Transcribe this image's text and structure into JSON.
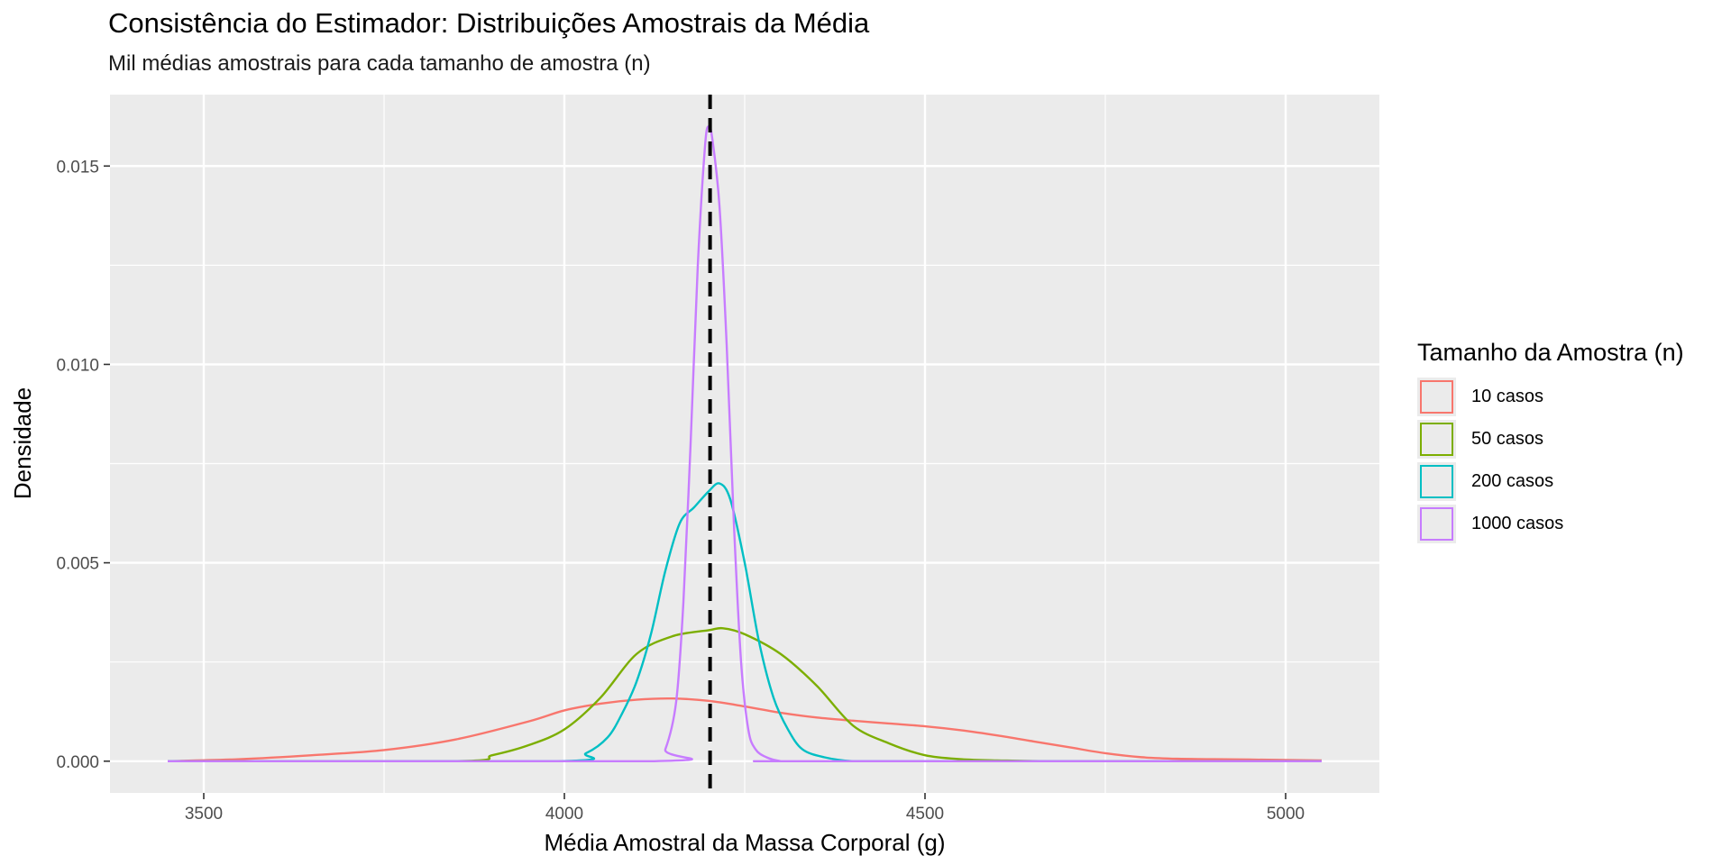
{
  "chart_data": {
    "type": "area",
    "title": "Consistência do Estimador: Distribuições Amostrais da Média",
    "subtitle": "Mil médias amostrais para cada tamanho de amostra (n)",
    "xlabel": "Média Amostral da Massa Corporal (g)",
    "ylabel": "Densidade",
    "xlim": [
      3370,
      5130
    ],
    "ylim": [
      -0.0008,
      0.0168
    ],
    "x_ticks": [
      3500,
      4000,
      4500,
      5000
    ],
    "y_ticks": [
      0.0,
      0.005,
      0.01,
      0.015
    ],
    "y_tick_labels": [
      "0.000",
      "0.005",
      "0.010",
      "0.015"
    ],
    "grid": true,
    "legend_position": "right",
    "reference_line": {
      "x": 4202,
      "style": "dashed",
      "color": "#000000"
    },
    "legend_title": "Tamanho da Amostra (n)",
    "series": [
      {
        "name": "10 casos",
        "color": "#F8766D",
        "x": [
          3450,
          3550,
          3650,
          3750,
          3850,
          3950,
          4000,
          4050,
          4100,
          4150,
          4200,
          4250,
          4300,
          4350,
          4400,
          4450,
          4500,
          4550,
          4600,
          4650,
          4700,
          4750,
          4800,
          4850,
          4900,
          5000,
          5050
        ],
        "y": [
          0.0,
          5e-05,
          0.00015,
          0.00028,
          0.00055,
          0.001,
          0.00128,
          0.00145,
          0.00155,
          0.00158,
          0.00152,
          0.00138,
          0.00122,
          0.0011,
          0.00102,
          0.00095,
          0.00088,
          0.00078,
          0.00065,
          0.0005,
          0.00035,
          0.0002,
          0.0001,
          6e-05,
          5e-05,
          3e-05,
          2e-05
        ]
      },
      {
        "name": "50 casos",
        "color": "#7CAE00",
        "x": [
          3450,
          3850,
          3900,
          3950,
          4000,
          4050,
          4100,
          4150,
          4200,
          4220,
          4250,
          4300,
          4350,
          4400,
          4450,
          4500,
          4550,
          4600,
          4700,
          5050
        ],
        "y": [
          0.0,
          0.0,
          0.00015,
          0.0004,
          0.0008,
          0.0016,
          0.0027,
          0.00315,
          0.0033,
          0.00335,
          0.0032,
          0.0027,
          0.0019,
          0.0009,
          0.00045,
          0.00015,
          5e-05,
          2e-05,
          0.0,
          0.0
        ]
      },
      {
        "name": "200 casos",
        "color": "#00BFC4",
        "x": [
          3450,
          3990,
          4030,
          4060,
          4080,
          4100,
          4120,
          4140,
          4160,
          4180,
          4200,
          4215,
          4230,
          4250,
          4270,
          4290,
          4310,
          4330,
          4360,
          4400,
          4450,
          5050
        ],
        "y": [
          0.0,
          0.0,
          0.0002,
          0.0006,
          0.0012,
          0.002,
          0.0032,
          0.0048,
          0.006,
          0.0064,
          0.0068,
          0.007,
          0.0066,
          0.005,
          0.003,
          0.0016,
          0.0008,
          0.0003,
          0.0001,
          0.0,
          0.0,
          0.0
        ]
      },
      {
        "name": "1000 casos",
        "color": "#C77CFF",
        "x": [
          3450,
          4125,
          4140,
          4155,
          4165,
          4175,
          4185,
          4195,
          4200,
          4205,
          4215,
          4225,
          4235,
          4245,
          4255,
          4265,
          4280,
          4300,
          4320,
          5050
        ],
        "y": [
          0.0,
          0.0,
          0.0003,
          0.0015,
          0.004,
          0.008,
          0.0125,
          0.0155,
          0.016,
          0.0157,
          0.014,
          0.0105,
          0.006,
          0.0025,
          0.0008,
          0.0003,
          0.0001,
          0.0,
          0.0,
          0.0
        ]
      }
    ]
  }
}
